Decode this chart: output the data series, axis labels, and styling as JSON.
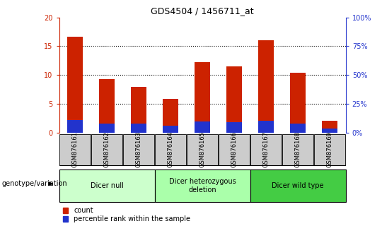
{
  "title": "GDS4504 / 1456711_at",
  "samples": [
    "GSM876161",
    "GSM876162",
    "GSM876163",
    "GSM876164",
    "GSM876165",
    "GSM876166",
    "GSM876167",
    "GSM876168",
    "GSM876169"
  ],
  "counts": [
    16.7,
    9.3,
    7.9,
    5.8,
    12.2,
    11.5,
    16.1,
    10.4,
    2.1
  ],
  "percentile_ranks": [
    10.6,
    7.9,
    8.0,
    5.8,
    9.5,
    9.0,
    10.0,
    8.0,
    3.7
  ],
  "groups": [
    {
      "label": "Dicer null",
      "start": 0,
      "end": 3,
      "color": "#ccffcc"
    },
    {
      "label": "Dicer heterozygous\ndeletion",
      "start": 3,
      "end": 6,
      "color": "#aaffaa"
    },
    {
      "label": "Dicer wild type",
      "start": 6,
      "end": 9,
      "color": "#44cc44"
    }
  ],
  "ylim_left": [
    0,
    20
  ],
  "ylim_right": [
    0,
    100
  ],
  "yticks_left": [
    0,
    5,
    10,
    15,
    20
  ],
  "yticks_right": [
    0,
    25,
    50,
    75,
    100
  ],
  "bar_color_red": "#cc2200",
  "bar_color_blue": "#2233cc",
  "left_axis_color": "#cc2200",
  "right_axis_color": "#2233cc",
  "bar_width": 0.5,
  "background_color": "#ffffff",
  "legend_count_label": "count",
  "legend_pct_label": "percentile rank within the sample",
  "genotype_label": "genotype/variation",
  "sample_box_color": "#cccccc",
  "grid_yticks": [
    5,
    10,
    15
  ]
}
